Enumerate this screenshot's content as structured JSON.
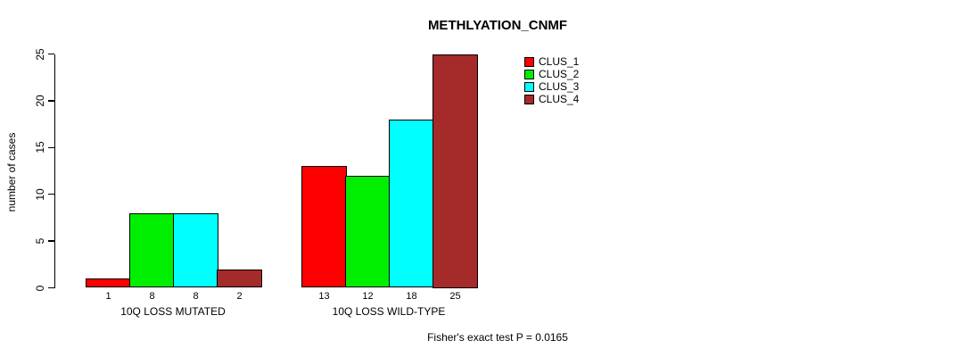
{
  "chart_data": {
    "type": "bar",
    "title": "METHLYATION_CNMF",
    "ylabel": "number of cases",
    "xlabel": "",
    "ylim": [
      0,
      25
    ],
    "yticks": [
      0,
      5,
      10,
      15,
      20,
      25
    ],
    "grid": false,
    "legend_position": "top-right",
    "categories": [
      "10Q LOSS MUTATED",
      "10Q LOSS WILD-TYPE"
    ],
    "series": [
      {
        "name": "CLUS_1",
        "color": "#ff0000",
        "values": [
          1,
          13
        ]
      },
      {
        "name": "CLUS_2",
        "color": "#00ee00",
        "values": [
          8,
          12
        ]
      },
      {
        "name": "CLUS_3",
        "color": "#00ffff",
        "values": [
          8,
          18
        ]
      },
      {
        "name": "CLUS_4",
        "color": "#a52a2a",
        "values": [
          2,
          25
        ]
      }
    ],
    "bar_value_labels": [
      [
        1,
        8,
        8,
        2
      ],
      [
        13,
        12,
        18,
        25
      ]
    ],
    "footnote": "Fisher's exact test P = 0.0165"
  }
}
